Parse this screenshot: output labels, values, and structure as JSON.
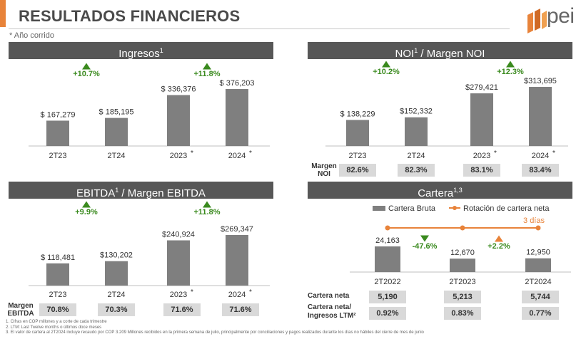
{
  "header": {
    "title": "RESULTADOS FINANCIEROS",
    "subnote": "* Año corrido",
    "logo_text": "pei"
  },
  "panels": {
    "ingresos": {
      "title": "Ingresos",
      "sup": "1"
    },
    "noi": {
      "title_a": "NOI",
      "sup": "1",
      "title_b": " / Margen NOI"
    },
    "ebitda": {
      "title_a": "EBITDA",
      "sup": "1",
      "title_b": " / Margen EBITDA"
    },
    "cartera": {
      "title": "Cartera",
      "sup": "1,3"
    }
  },
  "colors": {
    "bar": "#7f7f7f",
    "up": "#3a8a1e",
    "down": "#3a8a1e",
    "orange": "#e8833a",
    "header_bg": "#575757",
    "box": "#d9d9d9"
  },
  "chart_data": [
    {
      "id": "ingresos",
      "type": "bar",
      "categories": [
        "2T23",
        "2T24",
        "2023",
        "2024"
      ],
      "category_suffix": [
        "",
        "",
        "*",
        "*"
      ],
      "values": [
        167279,
        185195,
        336376,
        376203
      ],
      "value_labels": [
        "$ 167,279",
        "$ 185,195",
        "$ 336,376",
        "$ 376,203"
      ],
      "growth": [
        {
          "label": "+10.7%",
          "dir": "up"
        },
        {
          "label": "+11.8%",
          "dir": "up"
        }
      ]
    },
    {
      "id": "noi",
      "type": "bar",
      "categories": [
        "2T23",
        "2T24",
        "2023",
        "2024"
      ],
      "category_suffix": [
        "",
        "",
        "*",
        "*"
      ],
      "values": [
        138229,
        152332,
        279421,
        313695
      ],
      "value_labels": [
        "$ 138,229",
        "$152,332",
        "$279,421",
        "$313,695"
      ],
      "growth": [
        {
          "label": "+10.2%",
          "dir": "up"
        },
        {
          "label": "+12.3%",
          "dir": "up"
        }
      ],
      "margin_label": [
        "Margen",
        "NOI"
      ],
      "margins": [
        "82.6%",
        "82.3%",
        "83.1%",
        "83.4%"
      ]
    },
    {
      "id": "ebitda",
      "type": "bar",
      "categories": [
        "2T23",
        "2T24",
        "2023",
        "2024"
      ],
      "category_suffix": [
        "",
        "",
        "*",
        "*"
      ],
      "values": [
        118481,
        130202,
        240924,
        269347
      ],
      "value_labels": [
        "$ 118,481",
        "$130,202",
        "$240,924",
        "$269,347"
      ],
      "growth": [
        {
          "label": "+9.9%",
          "dir": "up"
        },
        {
          "label": "+11.8%",
          "dir": "up"
        }
      ],
      "margin_label": [
        "Margen",
        "EBITDA"
      ],
      "margins": [
        "70.8%",
        "70.3%",
        "71.6%",
        "71.6%"
      ]
    },
    {
      "id": "cartera",
      "type": "bar+line",
      "categories": [
        "2T2022",
        "2T2023",
        "2T2024"
      ],
      "values": [
        24163,
        12670,
        12950
      ],
      "value_labels": [
        "24,163",
        "12,670",
        "12,950"
      ],
      "legend": [
        "Cartera Bruta",
        "Rotación de cartera neta"
      ],
      "line_last_label": "3 días",
      "growth": [
        {
          "label": "-47.6%",
          "dir": "down"
        },
        {
          "label": "+2.2%",
          "dir": "up"
        }
      ],
      "rows": [
        {
          "label": [
            "Cartera neta"
          ],
          "values": [
            "5,190",
            "5,213",
            "5,744"
          ]
        },
        {
          "label": [
            "Cartera neta/",
            "Ingresos LTM²"
          ],
          "values": [
            "0.92%",
            "0.83%",
            "0.77%"
          ]
        }
      ]
    }
  ],
  "footnotes": [
    "1.     Cifras en COP millones y a corte de cada trimestre",
    "2.     LTM: Last Twelve months o últimos doce meses",
    "3.     El valor de cartera al 2T2024 incluye recaudo por COP 3.209 Millones recibidos en la primera semana de julio, principalmente por conciliaciones y pagos realizados durante los días no hábiles del cierre de mes de junio"
  ]
}
